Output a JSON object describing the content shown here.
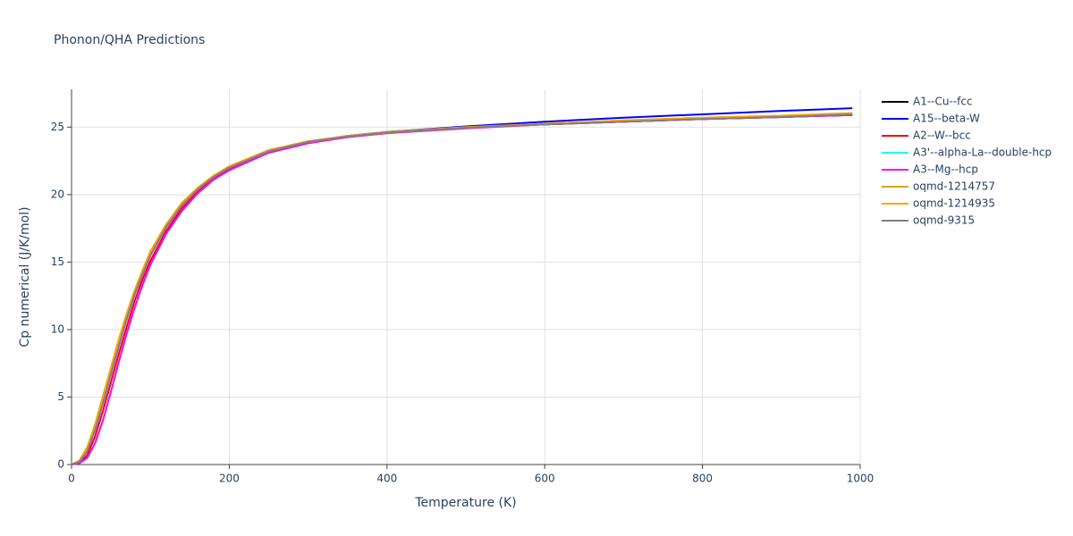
{
  "chart_data": {
    "type": "line",
    "title": "Phonon/QHA Predictions",
    "x_label": "Temperature (K)",
    "y_label": "Cp numerical (J/K/mol)",
    "x": [
      0,
      10,
      20,
      30,
      40,
      50,
      60,
      70,
      80,
      90,
      100,
      120,
      140,
      160,
      180,
      200,
      250,
      300,
      350,
      400,
      500,
      600,
      700,
      800,
      900,
      990
    ],
    "series": [
      {
        "name": "A1--Cu--fcc",
        "color": "#000000",
        "values": [
          0,
          0.2,
          1.0,
          2.6,
          4.6,
          6.7,
          8.8,
          10.8,
          12.6,
          14.1,
          15.5,
          17.6,
          19.2,
          20.4,
          21.3,
          22.0,
          23.2,
          23.9,
          24.3,
          24.6,
          24.95,
          25.2,
          25.4,
          25.6,
          25.75,
          25.9
        ]
      },
      {
        "name": "A15--beta-W",
        "color": "#0000ff",
        "values": [
          0,
          0.2,
          1.0,
          2.6,
          4.6,
          6.7,
          8.8,
          10.8,
          12.6,
          14.1,
          15.5,
          17.6,
          19.2,
          20.4,
          21.3,
          22.0,
          23.2,
          23.9,
          24.35,
          24.65,
          25.05,
          25.4,
          25.7,
          25.95,
          26.2,
          26.4
        ]
      },
      {
        "name": "A2--W--bcc",
        "color": "#ff0000",
        "values": [
          0,
          0.1,
          0.7,
          2.1,
          4.0,
          6.1,
          8.2,
          10.2,
          12.1,
          13.7,
          15.1,
          17.3,
          19.0,
          20.2,
          21.2,
          21.9,
          23.1,
          23.85,
          24.3,
          24.6,
          24.95,
          25.2,
          25.4,
          25.6,
          25.75,
          25.9
        ]
      },
      {
        "name": "A3'--alpha-La--double-hcp",
        "color": "#00ffff",
        "values": [
          0,
          0.2,
          1.0,
          2.6,
          4.6,
          6.7,
          8.8,
          10.8,
          12.6,
          14.1,
          15.5,
          17.6,
          19.2,
          20.4,
          21.3,
          22.0,
          23.2,
          23.9,
          24.3,
          24.6,
          24.95,
          25.2,
          25.45,
          25.65,
          25.8,
          25.95
        ]
      },
      {
        "name": "A3--Mg--hcp",
        "color": "#ff00ff",
        "values": [
          0,
          0.1,
          0.5,
          1.6,
          3.3,
          5.4,
          7.6,
          9.7,
          11.6,
          13.3,
          14.8,
          17.1,
          18.8,
          20.1,
          21.1,
          21.8,
          23.1,
          23.8,
          24.25,
          24.55,
          24.9,
          25.2,
          25.4,
          25.6,
          25.75,
          25.9
        ]
      },
      {
        "name": "oqmd-1214757",
        "color": "#daa520",
        "values": [
          0,
          0.3,
          1.3,
          3.0,
          5.1,
          7.2,
          9.3,
          11.2,
          12.9,
          14.4,
          15.8,
          17.8,
          19.4,
          20.5,
          21.4,
          22.1,
          23.3,
          23.95,
          24.35,
          24.65,
          25.0,
          25.25,
          25.5,
          25.7,
          25.85,
          26.0
        ]
      },
      {
        "name": "oqmd-1214935",
        "color": "#ffa500",
        "values": [
          0,
          0.3,
          1.2,
          2.9,
          5.0,
          7.1,
          9.2,
          11.1,
          12.8,
          14.3,
          15.7,
          17.7,
          19.3,
          20.5,
          21.4,
          22.1,
          23.25,
          23.9,
          24.3,
          24.6,
          24.95,
          25.25,
          25.5,
          25.7,
          25.85,
          26.05
        ]
      },
      {
        "name": "oqmd-9315",
        "color": "#808080",
        "values": [
          0,
          0.2,
          1.0,
          2.6,
          4.6,
          6.7,
          8.8,
          10.8,
          12.6,
          14.1,
          15.5,
          17.6,
          19.2,
          20.4,
          21.3,
          22.0,
          23.2,
          23.9,
          24.3,
          24.6,
          24.95,
          25.2,
          25.4,
          25.6,
          25.75,
          25.95
        ]
      }
    ],
    "xlim": [
      0,
      1000
    ],
    "xticks": [
      0,
      200,
      400,
      600,
      800,
      1000
    ],
    "ylim": [
      0,
      27.8
    ],
    "yticks": [
      0,
      5,
      10,
      15,
      20,
      25
    ],
    "grid": true
  }
}
